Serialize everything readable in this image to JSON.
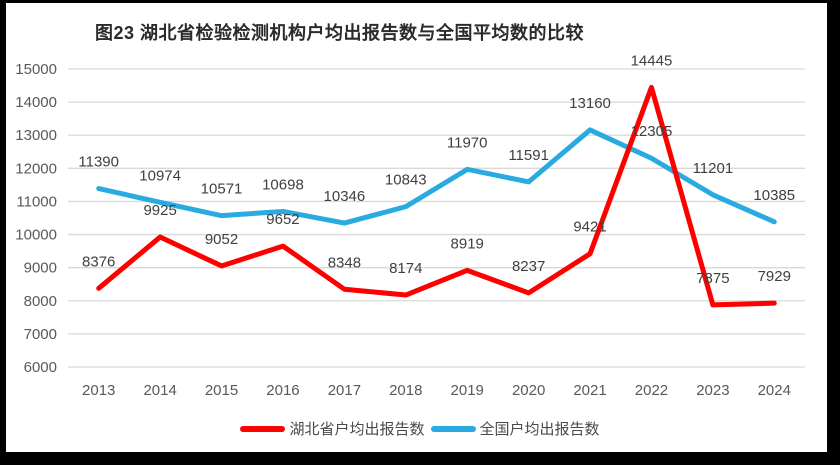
{
  "title": "图23 湖北省检验检测机构户均出报告数与全国平均数的比较",
  "chart_data": {
    "type": "line",
    "categories": [
      "2013",
      "2014",
      "2015",
      "2016",
      "2017",
      "2018",
      "2019",
      "2020",
      "2021",
      "2022",
      "2023",
      "2024"
    ],
    "series": [
      {
        "name": "湖北省户均出报告数",
        "slug": "hubei",
        "color": "#FE0000",
        "values": [
          8376,
          9925,
          9052,
          9652,
          8348,
          8174,
          8919,
          8237,
          9421,
          14445,
          7875,
          7929
        ]
      },
      {
        "name": "全国户均出报告数",
        "slug": "national",
        "color": "#29ABE2",
        "values": [
          11390,
          10974,
          10571,
          10698,
          10346,
          10843,
          11970,
          11591,
          13160,
          12305,
          11201,
          10385
        ]
      }
    ],
    "ylim": [
      6000,
      15000
    ],
    "ytick_step": 1000,
    "grid": true,
    "data_labels": true,
    "gridline_color": "#D9D9D9",
    "tick_label_color": "#595959",
    "data_label_color": "#404040",
    "legend_position": "bottom"
  }
}
